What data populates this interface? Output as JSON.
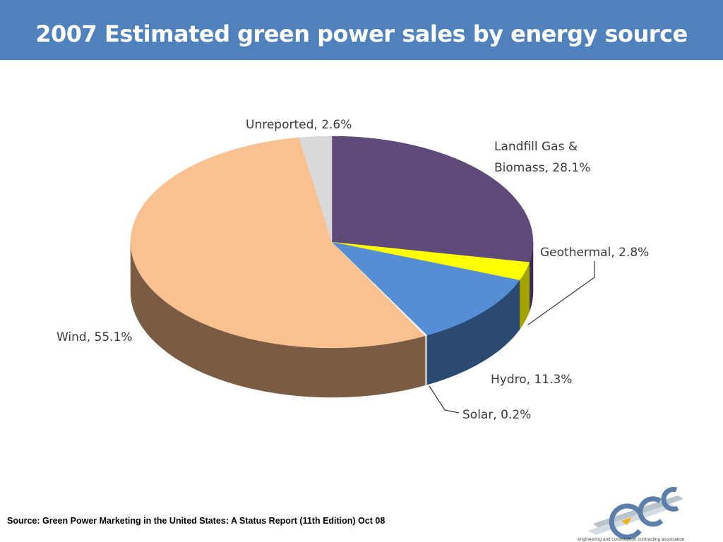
{
  "title": "2007 Estimated green power sales by energy source",
  "source": "Source: Green Power Marketing in the United States: A Status Report (11th Edition) Oct 08",
  "logo": {
    "icon": "ecca-logo",
    "caption": "engineering and construction contracting association"
  },
  "chart_data": {
    "type": "pie",
    "title": "2007 Estimated green power sales by energy source",
    "unit": "%",
    "slices": [
      {
        "name": "Landfill Gas & Biomass",
        "label": [
          "Landfill Gas &",
          "Biomass, 28.1%"
        ],
        "value": 28.1,
        "color": "#5e4b7b",
        "side_color": "#3c2f50"
      },
      {
        "name": "Geothermal",
        "label": [
          "Geothermal, 2.8%"
        ],
        "value": 2.8,
        "color": "#ffff00",
        "side_color": "#a3a300"
      },
      {
        "name": "Hydro",
        "label": [
          "Hydro, 11.3%"
        ],
        "value": 11.3,
        "color": "#558ed5",
        "side_color": "#2a4a72"
      },
      {
        "name": "Solar",
        "label": [
          "Solar, 0.2%"
        ],
        "value": 0.2,
        "color": "#f0f0f0",
        "side_color": "#bbbbbb"
      },
      {
        "name": "Wind",
        "label": [
          "Wind, 55.1%"
        ],
        "value": 55.1,
        "color": "#f9c090",
        "side_color": "#7a5c44"
      },
      {
        "name": "Unreported",
        "label": [
          "Unreported, 2.6%"
        ],
        "value": 2.6,
        "color": "#d9d9d9",
        "side_color": "#9a9a9a"
      }
    ]
  }
}
